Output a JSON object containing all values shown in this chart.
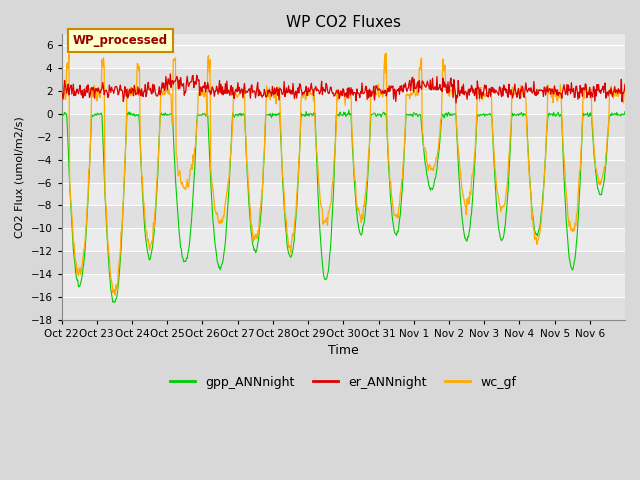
{
  "title": "WP CO2 Fluxes",
  "xlabel": "Time",
  "ylabel": "CO2 Flux (umol/m2/s)",
  "ylim": [
    -18,
    7
  ],
  "yticks": [
    -18,
    -16,
    -14,
    -12,
    -10,
    -8,
    -6,
    -4,
    -2,
    0,
    2,
    4,
    6
  ],
  "xtick_labels": [
    "Oct 22",
    "Oct 23",
    "Oct 24",
    "Oct 25",
    "Oct 26",
    "Oct 27",
    "Oct 28",
    "Oct 29",
    "Oct 30",
    "Oct 31",
    "Nov 1",
    "Nov 2",
    "Nov 3",
    "Nov 4",
    "Nov 5",
    "Nov 6"
  ],
  "legend_labels": [
    "gpp_ANNnight",
    "er_ANNnight",
    "wc_gf"
  ],
  "watermark_text": "WP_processed",
  "watermark_bg": "#ffffcc",
  "watermark_edge": "#cc8800",
  "watermark_fg": "#990000",
  "fig_bg": "#d8d8d8",
  "plot_bg_light": "#e8e8e8",
  "plot_bg_dark": "#d8d8d8",
  "grid_color": "#ffffff",
  "gpp_color": "#00cc00",
  "er_color": "#dd0000",
  "wc_color": "#ffaa00",
  "n_days": 16,
  "pts_per_day": 48
}
